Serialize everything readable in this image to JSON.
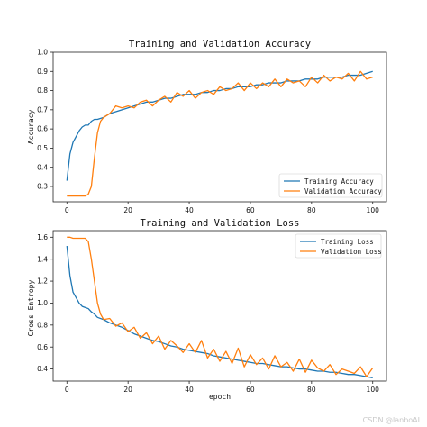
{
  "colors": {
    "train": "#1f77b4",
    "val": "#ff7f0e"
  },
  "watermark": "CSDN @lanboAI",
  "chart_data": [
    {
      "type": "line",
      "title": "Training and Validation Accuracy",
      "xlabel": "",
      "ylabel": "Accuracy",
      "xlim": [
        0,
        100
      ],
      "ylim": [
        0.3,
        1.0
      ],
      "xticks": [
        0,
        20,
        40,
        60,
        80,
        100
      ],
      "yticks": [
        0.3,
        0.4,
        0.5,
        0.6,
        0.7,
        0.8,
        0.9,
        1.0
      ],
      "legend_position": "lower-right",
      "series": [
        {
          "name": "Training Accuracy",
          "color": "#1f77b4",
          "x": [
            0,
            1,
            2,
            3,
            4,
            5,
            6,
            7,
            8,
            9,
            10,
            12,
            14,
            16,
            18,
            20,
            22,
            24,
            26,
            28,
            30,
            32,
            34,
            36,
            38,
            40,
            42,
            44,
            46,
            48,
            50,
            52,
            54,
            56,
            58,
            60,
            62,
            64,
            66,
            68,
            70,
            72,
            74,
            76,
            78,
            80,
            82,
            84,
            86,
            88,
            90,
            92,
            94,
            96,
            98,
            100
          ],
          "values": [
            0.33,
            0.47,
            0.53,
            0.56,
            0.59,
            0.61,
            0.62,
            0.62,
            0.64,
            0.65,
            0.65,
            0.66,
            0.68,
            0.69,
            0.7,
            0.71,
            0.72,
            0.73,
            0.74,
            0.74,
            0.75,
            0.76,
            0.76,
            0.77,
            0.78,
            0.78,
            0.78,
            0.79,
            0.79,
            0.8,
            0.8,
            0.81,
            0.81,
            0.82,
            0.82,
            0.82,
            0.83,
            0.83,
            0.84,
            0.84,
            0.84,
            0.85,
            0.85,
            0.85,
            0.86,
            0.86,
            0.86,
            0.87,
            0.87,
            0.87,
            0.87,
            0.88,
            0.88,
            0.88,
            0.89,
            0.9
          ]
        },
        {
          "name": "Validation Accuracy",
          "color": "#ff7f0e",
          "x": [
            0,
            1,
            2,
            3,
            4,
            5,
            6,
            7,
            8,
            9,
            10,
            11,
            12,
            14,
            16,
            18,
            20,
            22,
            24,
            26,
            28,
            30,
            32,
            34,
            36,
            38,
            40,
            42,
            44,
            46,
            48,
            50,
            52,
            54,
            56,
            58,
            60,
            62,
            64,
            66,
            68,
            70,
            72,
            74,
            76,
            78,
            80,
            82,
            84,
            86,
            88,
            90,
            92,
            94,
            96,
            98,
            100
          ],
          "values": [
            0.25,
            0.25,
            0.25,
            0.25,
            0.25,
            0.25,
            0.25,
            0.26,
            0.3,
            0.45,
            0.58,
            0.64,
            0.66,
            0.68,
            0.72,
            0.71,
            0.72,
            0.71,
            0.74,
            0.75,
            0.72,
            0.75,
            0.77,
            0.74,
            0.79,
            0.77,
            0.8,
            0.76,
            0.79,
            0.8,
            0.78,
            0.82,
            0.8,
            0.81,
            0.84,
            0.8,
            0.84,
            0.81,
            0.84,
            0.82,
            0.86,
            0.82,
            0.86,
            0.84,
            0.85,
            0.82,
            0.87,
            0.84,
            0.88,
            0.85,
            0.87,
            0.86,
            0.89,
            0.85,
            0.9,
            0.86,
            0.87
          ]
        }
      ]
    },
    {
      "type": "line",
      "title": "Training and Validation Loss",
      "xlabel": "epoch",
      "ylabel": "Cross Entropy",
      "xlim": [
        0,
        100
      ],
      "ylim": [
        0.3,
        1.6
      ],
      "xticks": [
        0,
        20,
        40,
        60,
        80,
        100
      ],
      "yticks": [
        0.4,
        0.6,
        0.8,
        1.0,
        1.2,
        1.4,
        1.6
      ],
      "legend_position": "upper-right",
      "series": [
        {
          "name": "Training Loss",
          "color": "#1f77b4",
          "x": [
            0,
            1,
            2,
            3,
            4,
            5,
            6,
            7,
            8,
            9,
            10,
            12,
            14,
            16,
            18,
            20,
            22,
            24,
            26,
            28,
            30,
            32,
            34,
            36,
            38,
            40,
            42,
            44,
            46,
            48,
            50,
            52,
            54,
            56,
            58,
            60,
            62,
            64,
            66,
            68,
            70,
            72,
            74,
            76,
            78,
            80,
            82,
            84,
            86,
            88,
            90,
            92,
            94,
            96,
            98,
            100
          ],
          "values": [
            1.52,
            1.25,
            1.1,
            1.05,
            1.0,
            0.97,
            0.96,
            0.95,
            0.92,
            0.9,
            0.87,
            0.85,
            0.82,
            0.8,
            0.78,
            0.75,
            0.72,
            0.7,
            0.68,
            0.66,
            0.65,
            0.63,
            0.61,
            0.6,
            0.58,
            0.57,
            0.56,
            0.55,
            0.54,
            0.52,
            0.51,
            0.5,
            0.49,
            0.48,
            0.47,
            0.46,
            0.45,
            0.45,
            0.44,
            0.43,
            0.42,
            0.42,
            0.41,
            0.4,
            0.4,
            0.39,
            0.38,
            0.38,
            0.37,
            0.37,
            0.36,
            0.35,
            0.35,
            0.34,
            0.33,
            0.32
          ]
        },
        {
          "name": "Validation Loss",
          "color": "#ff7f0e",
          "x": [
            0,
            1,
            2,
            3,
            4,
            5,
            6,
            7,
            8,
            9,
            10,
            11,
            12,
            14,
            16,
            18,
            20,
            22,
            24,
            26,
            28,
            30,
            32,
            34,
            36,
            38,
            40,
            42,
            44,
            46,
            48,
            50,
            52,
            54,
            56,
            58,
            60,
            62,
            64,
            66,
            68,
            70,
            72,
            74,
            76,
            78,
            80,
            82,
            84,
            86,
            88,
            90,
            92,
            94,
            96,
            98,
            100
          ],
          "values": [
            1.6,
            1.6,
            1.59,
            1.59,
            1.59,
            1.59,
            1.59,
            1.56,
            1.4,
            1.2,
            1.0,
            0.9,
            0.85,
            0.86,
            0.79,
            0.82,
            0.74,
            0.78,
            0.68,
            0.73,
            0.63,
            0.7,
            0.58,
            0.66,
            0.61,
            0.55,
            0.63,
            0.55,
            0.66,
            0.5,
            0.58,
            0.47,
            0.56,
            0.45,
            0.59,
            0.42,
            0.53,
            0.44,
            0.5,
            0.4,
            0.52,
            0.42,
            0.46,
            0.38,
            0.49,
            0.37,
            0.48,
            0.41,
            0.38,
            0.44,
            0.35,
            0.4,
            0.38,
            0.36,
            0.42,
            0.33,
            0.41
          ]
        }
      ]
    }
  ]
}
